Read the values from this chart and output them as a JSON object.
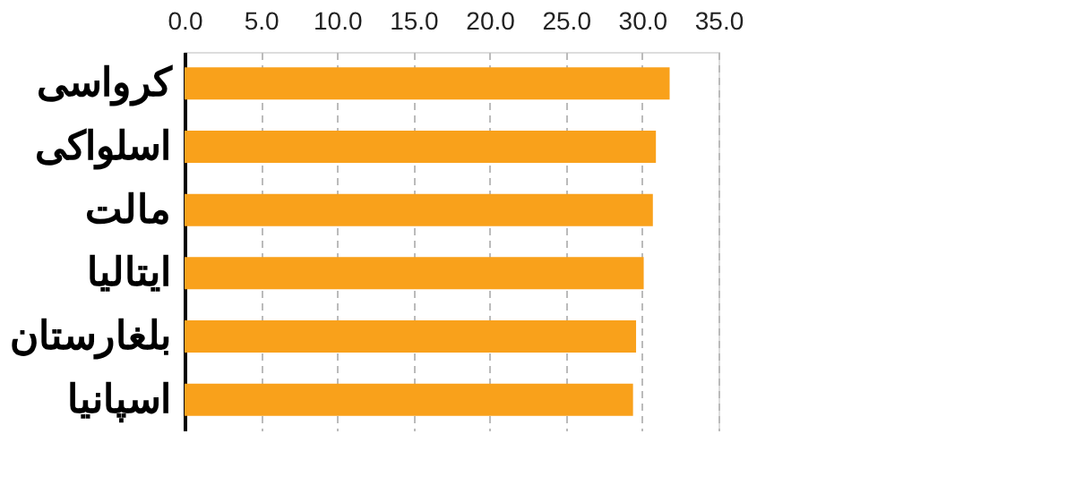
{
  "chart_data": {
    "type": "bar",
    "orientation": "horizontal",
    "categories": [
      "کرواسی",
      "اسلواکی",
      "مالت",
      "ایتالیا",
      "بلغارستان",
      "اسپانیا"
    ],
    "values": [
      31.8,
      30.9,
      30.7,
      30.1,
      29.6,
      29.4
    ],
    "color": "#f9a11b",
    "xlim": [
      0,
      35
    ],
    "xticks": [
      {
        "value": 0,
        "label": "0.0"
      },
      {
        "value": 5,
        "label": "5.0"
      },
      {
        "value": 10,
        "label": "10.0"
      },
      {
        "value": 15,
        "label": "15.0"
      },
      {
        "value": 20,
        "label": "20.0"
      },
      {
        "value": 25,
        "label": "25.0"
      },
      {
        "value": 30,
        "label": "30.0"
      },
      {
        "value": 35,
        "label": "35.0"
      }
    ],
    "grid": "x"
  }
}
